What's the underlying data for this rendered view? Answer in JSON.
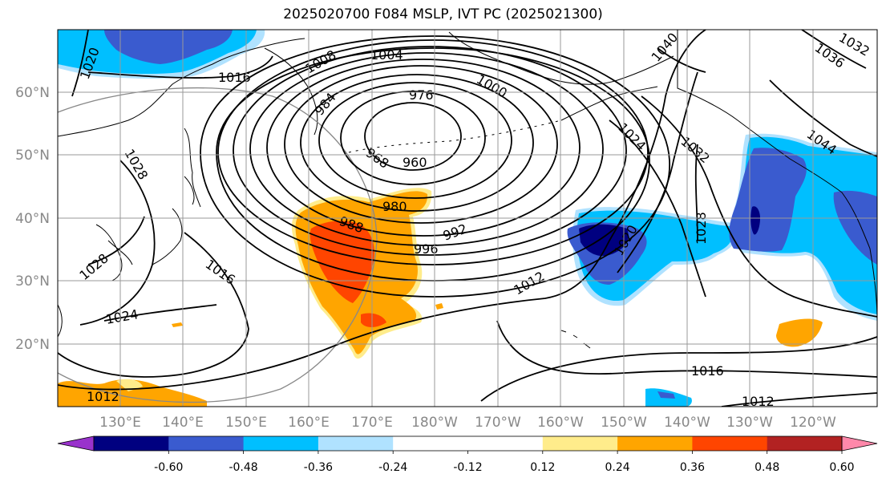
{
  "title": "2025020700 F084 MSLP, IVT PC (2025021300)",
  "lon_ticks": [
    "130°E",
    "140°E",
    "150°E",
    "160°E",
    "170°E",
    "180°W",
    "170°W",
    "160°W",
    "150°W",
    "140°W",
    "130°W",
    "120°W"
  ],
  "lat_ticks": [
    "60°N",
    "50°N",
    "40°N",
    "30°N",
    "20°N"
  ],
  "colorbar": {
    "colors": [
      "#9932cc",
      "#000080",
      "#3a5bcf",
      "#00bfff",
      "#b0e2ff",
      "#ffffff",
      "#ffffff",
      "#ffec8b",
      "#ffa500",
      "#ff4500",
      "#b22222",
      "#ff88aa"
    ],
    "tick_labels": [
      "-0.60",
      "-0.48",
      "-0.36",
      "-0.24",
      "-0.12",
      "0.12",
      "0.24",
      "0.36",
      "0.48",
      "0.60"
    ]
  },
  "isobar_labels": [
    "1004",
    "1008",
    "1000",
    "984",
    "976",
    "968",
    "960",
    "980",
    "988",
    "996",
    "992",
    "1016",
    "1024",
    "1028",
    "1012",
    "1020",
    "1032",
    "1036",
    "1040",
    "1044",
    "1028",
    "1016",
    "1012",
    "1020",
    "1012",
    "1016",
    "1024",
    "1028",
    "1032"
  ],
  "low_center": {
    "pressure": "960"
  },
  "colors": {
    "isobar": "#000000",
    "grid": "#999999",
    "coast": "#000000"
  }
}
